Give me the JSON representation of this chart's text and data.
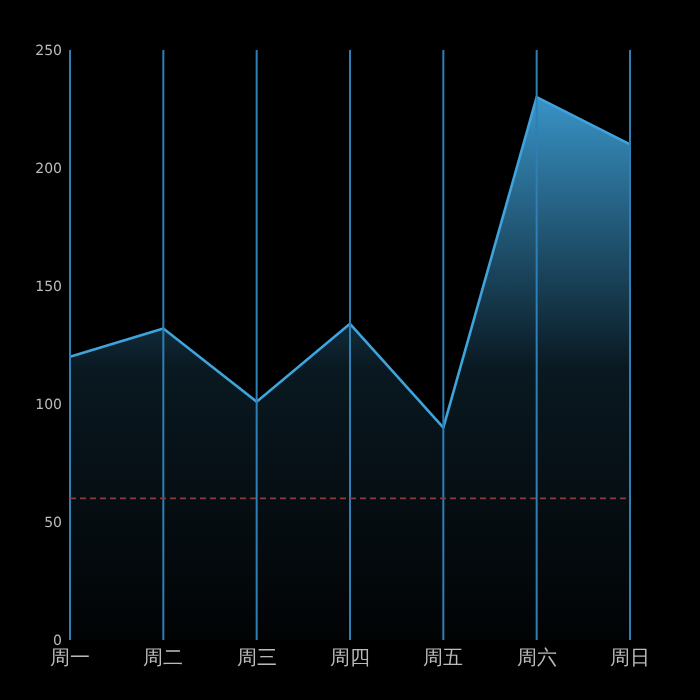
{
  "chart_data": {
    "type": "area",
    "categories": [
      "周一",
      "周二",
      "周三",
      "周四",
      "周五",
      "周六",
      "周日"
    ],
    "series": [
      {
        "color": "#3fa3dc",
        "values": [
          120,
          132,
          101,
          134,
          90,
          230,
          210
        ]
      }
    ],
    "ylim": [
      0,
      250
    ],
    "yticks": [
      0,
      50,
      100,
      150,
      200,
      250
    ],
    "grid": "x",
    "ref_lines": [
      {
        "axis": "y",
        "value": 60,
        "color": "#8a3a3a",
        "line_style": "dashed"
      }
    ]
  }
}
